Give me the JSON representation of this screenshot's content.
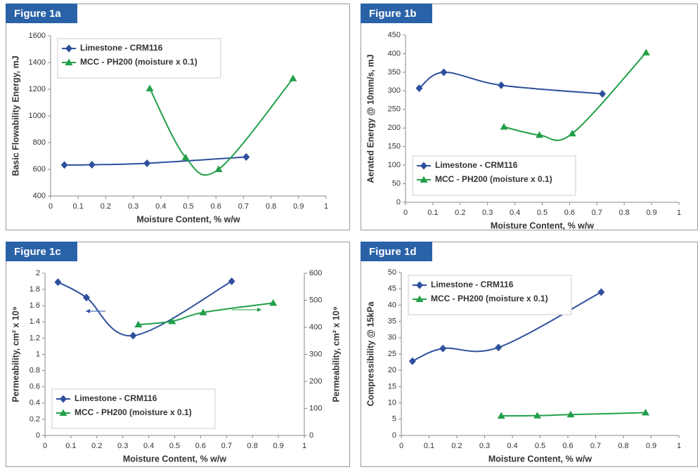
{
  "chart_data": [
    {
      "type": "scatter",
      "figure_label": "Figure 1a",
      "x_label": "Moisture Content, % w/w",
      "y_label": "Basic Flowability Energy, mJ",
      "xlim": [
        0,
        1
      ],
      "xticks": [
        0,
        0.1,
        0.2,
        0.3,
        0.4,
        0.5,
        0.6,
        0.7,
        0.8,
        0.9,
        1
      ],
      "ylim": [
        400,
        1600
      ],
      "yticks": [
        400,
        600,
        800,
        1000,
        1200,
        1400,
        1600
      ],
      "legend": "upper left",
      "series": [
        {
          "name": "Limestone - CRM116",
          "color": "#2d4f9c",
          "marker": "diamond",
          "x": [
            0.05,
            0.15,
            0.35,
            0.71
          ],
          "values": [
            632,
            634,
            645,
            692
          ]
        },
        {
          "name": "MCC - PH200 (moisture x 0.1)",
          "color": "#22a04a",
          "marker": "triangle",
          "x": [
            0.36,
            0.49,
            0.61,
            0.88
          ],
          "values": [
            1205,
            688,
            600,
            1280
          ]
        }
      ]
    },
    {
      "type": "scatter",
      "figure_label": "Figure 1b",
      "x_label": "Moisture Content, % w/w",
      "y_label": "Aerated Energy @ 10mm/s, mJ",
      "xlim": [
        0,
        1
      ],
      "xticks": [
        0,
        0.1,
        0.2,
        0.3,
        0.4,
        0.5,
        0.6,
        0.7,
        0.8,
        0.9,
        1
      ],
      "ylim": [
        0,
        450
      ],
      "yticks": [
        0,
        50,
        100,
        150,
        200,
        250,
        300,
        350,
        400,
        450
      ],
      "legend": "lower left",
      "series": [
        {
          "name": "Limestone - CRM116",
          "color": "#2d4f9c",
          "marker": "diamond",
          "x": [
            0.05,
            0.14,
            0.35,
            0.72
          ],
          "values": [
            307,
            350,
            315,
            292
          ]
        },
        {
          "name": "MCC - PH200 (moisture x 0.1)",
          "color": "#22a04a",
          "marker": "triangle",
          "x": [
            0.36,
            0.49,
            0.61,
            0.88
          ],
          "values": [
            203,
            181,
            185,
            403
          ]
        }
      ]
    },
    {
      "type": "scatter",
      "figure_label": "Figure 1c",
      "x_label": "Moisture Content, % w/w",
      "y_label": "Permeability, cm² x 10⁹",
      "y2_label": "Permeability, cm² x 10⁹",
      "xlim": [
        0,
        1
      ],
      "xticks": [
        0,
        0.1,
        0.2,
        0.3,
        0.4,
        0.5,
        0.6,
        0.7,
        0.8,
        0.9,
        1
      ],
      "ylim": [
        0,
        2
      ],
      "yticks": [
        0,
        0.2,
        0.4,
        0.6,
        0.8,
        1,
        1.2,
        1.4,
        1.6,
        1.8,
        2
      ],
      "y2lim": [
        0,
        600
      ],
      "y2ticks": [
        0,
        100,
        200,
        300,
        400,
        500,
        600
      ],
      "legend": "lower left",
      "series": [
        {
          "name": "Limestone - CRM116",
          "color": "#2d4f9c",
          "marker": "diamond",
          "x": [
            0.05,
            0.16,
            0.34,
            0.72
          ],
          "values": [
            1.89,
            1.7,
            1.23,
            1.9
          ]
        },
        {
          "name": "MCC - PH200 (moisture x 0.1)",
          "color": "#22a04a",
          "marker": "triangle",
          "axis": "y2",
          "x": [
            0.36,
            0.49,
            0.61,
            0.88
          ],
          "values": [
            410,
            422,
            455,
            490
          ]
        }
      ]
    },
    {
      "type": "scatter",
      "figure_label": "Figure 1d",
      "x_label": "Moisture Content, % w/w",
      "y_label": "Compressibility @ 15kPa",
      "xlim": [
        0,
        1
      ],
      "xticks": [
        0,
        0.1,
        0.2,
        0.3,
        0.4,
        0.5,
        0.6,
        0.7,
        0.8,
        0.9,
        1
      ],
      "ylim": [
        0,
        50
      ],
      "yticks": [
        0,
        5,
        10,
        15,
        20,
        25,
        30,
        35,
        40,
        45,
        50
      ],
      "legend": "upper left",
      "series": [
        {
          "name": "Limestone - CRM116",
          "color": "#2d4f9c",
          "marker": "diamond",
          "x": [
            0.04,
            0.15,
            0.35,
            0.72
          ],
          "values": [
            22.8,
            26.7,
            27,
            44
          ]
        },
        {
          "name": "MCC - PH200 (moisture x 0.1)",
          "color": "#22a04a",
          "marker": "triangle",
          "x": [
            0.36,
            0.49,
            0.61,
            0.88
          ],
          "values": [
            6,
            6.1,
            6.4,
            7
          ]
        }
      ]
    }
  ]
}
